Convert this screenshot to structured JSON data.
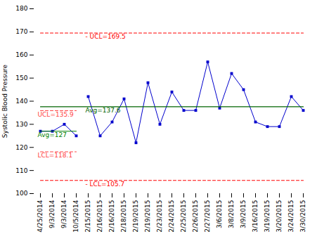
{
  "chart_data": {
    "type": "line",
    "ylabel": "Systolic Blood Pressure",
    "categories": [
      "4/25/2014",
      "9/3/2014",
      "9/3/2014",
      "10/5/2014",
      "2/15/2015",
      "2/16/2015",
      "2/16/2015",
      "2/18/2015",
      "2/19/2015",
      "2/19/2015",
      "2/23/2015",
      "2/24/2015",
      "2/25/2015",
      "2/26/2015",
      "2/27/2015",
      "3/6/2015",
      "3/8/2015",
      "3/9/2015",
      "3/16/2015",
      "3/19/2015",
      "3/20/2015",
      "3/24/2015",
      "3/30/2015"
    ],
    "series": [
      {
        "color": "#0000CD",
        "marker": "square",
        "line_style": "solid",
        "values": [
          127,
          127,
          130,
          125,
          null,
          null,
          null,
          null,
          null,
          null,
          null,
          null,
          null,
          null,
          null,
          null,
          null,
          null,
          null,
          null,
          null,
          null,
          null
        ]
      },
      {
        "color": "#0000CD",
        "marker": "square",
        "line_style": "solid",
        "values": [
          null,
          null,
          null,
          null,
          142,
          125,
          131,
          141,
          122,
          148,
          130,
          144,
          136,
          136,
          157,
          137,
          152,
          145,
          131,
          129,
          129,
          142,
          136
        ]
      },
      {
        "color": "#FF0000",
        "line_style": "dashed",
        "values": [
          169.5,
          169.5,
          169.5,
          169.5,
          169.5,
          169.5,
          169.5,
          169.5,
          169.5,
          169.5,
          169.5,
          169.5,
          169.5,
          169.5,
          169.5,
          169.5,
          169.5,
          169.5,
          169.5,
          169.5,
          169.5,
          169.5,
          169.5
        ]
      },
      {
        "color": "#006400",
        "line_style": "solid",
        "values": [
          137.6,
          137.6,
          137.6,
          137.6,
          137.6,
          137.6,
          137.6,
          137.6,
          137.6,
          137.6,
          137.6,
          137.6,
          137.6,
          137.6,
          137.6,
          137.6,
          137.6,
          137.6,
          137.6,
          137.6,
          137.6,
          137.6,
          137.6
        ]
      },
      {
        "color": "#FF0000",
        "line_style": "dashed",
        "values": [
          105.7,
          105.7,
          105.7,
          105.7,
          105.7,
          105.7,
          105.7,
          105.7,
          105.7,
          105.7,
          105.7,
          105.7,
          105.7,
          105.7,
          105.7,
          105.7,
          105.7,
          105.7,
          105.7,
          105.7,
          105.7,
          105.7,
          105.7
        ]
      },
      {
        "color": "#FF4444",
        "line_style": "dashed",
        "values": [
          135.9,
          135.9,
          135.9,
          135.9,
          null,
          null,
          null,
          null,
          null,
          null,
          null,
          null,
          null,
          null,
          null,
          null,
          null,
          null,
          null,
          null,
          null,
          null,
          null
        ]
      },
      {
        "color": "#008000",
        "line_style": "solid",
        "values": [
          127,
          127,
          127,
          127,
          null,
          null,
          null,
          null,
          null,
          null,
          null,
          null,
          null,
          null,
          null,
          null,
          null,
          null,
          null,
          null,
          null,
          null,
          null
        ]
      },
      {
        "color": "#FF4444",
        "line_style": "dashed",
        "values": [
          118.1,
          118.1,
          118.1,
          118.1,
          null,
          null,
          null,
          null,
          null,
          null,
          null,
          null,
          null,
          null,
          null,
          null,
          null,
          null,
          null,
          null,
          null,
          null,
          null
        ]
      }
    ],
    "annotations": [
      {
        "text": "- UCL=169.5",
        "x": "2/15/2015",
        "y": 169.5,
        "color": "#FF0000"
      },
      {
        "text": "Avg=137.6",
        "x": "2/15/2015",
        "y": 137.6,
        "color": "#006400"
      },
      {
        "text": "- LCL=105.7",
        "x": "2/15/2015",
        "y": 105.7,
        "color": "#FF0000"
      },
      {
        "text": "UCL=135.9",
        "x": "4/25/2014",
        "y": 135.9,
        "color": "#FF4444"
      },
      {
        "text": "Avg=127",
        "x": "4/25/2014",
        "y": 127,
        "color": "#008000"
      },
      {
        "text": "LCL=118.1",
        "x": "4/25/2014",
        "y": 118.1,
        "color": "#FF4444"
      }
    ],
    "ylim": [
      100,
      180
    ],
    "yticks": [
      100,
      110,
      120,
      130,
      140,
      150,
      160,
      170,
      180
    ],
    "grid": false
  }
}
